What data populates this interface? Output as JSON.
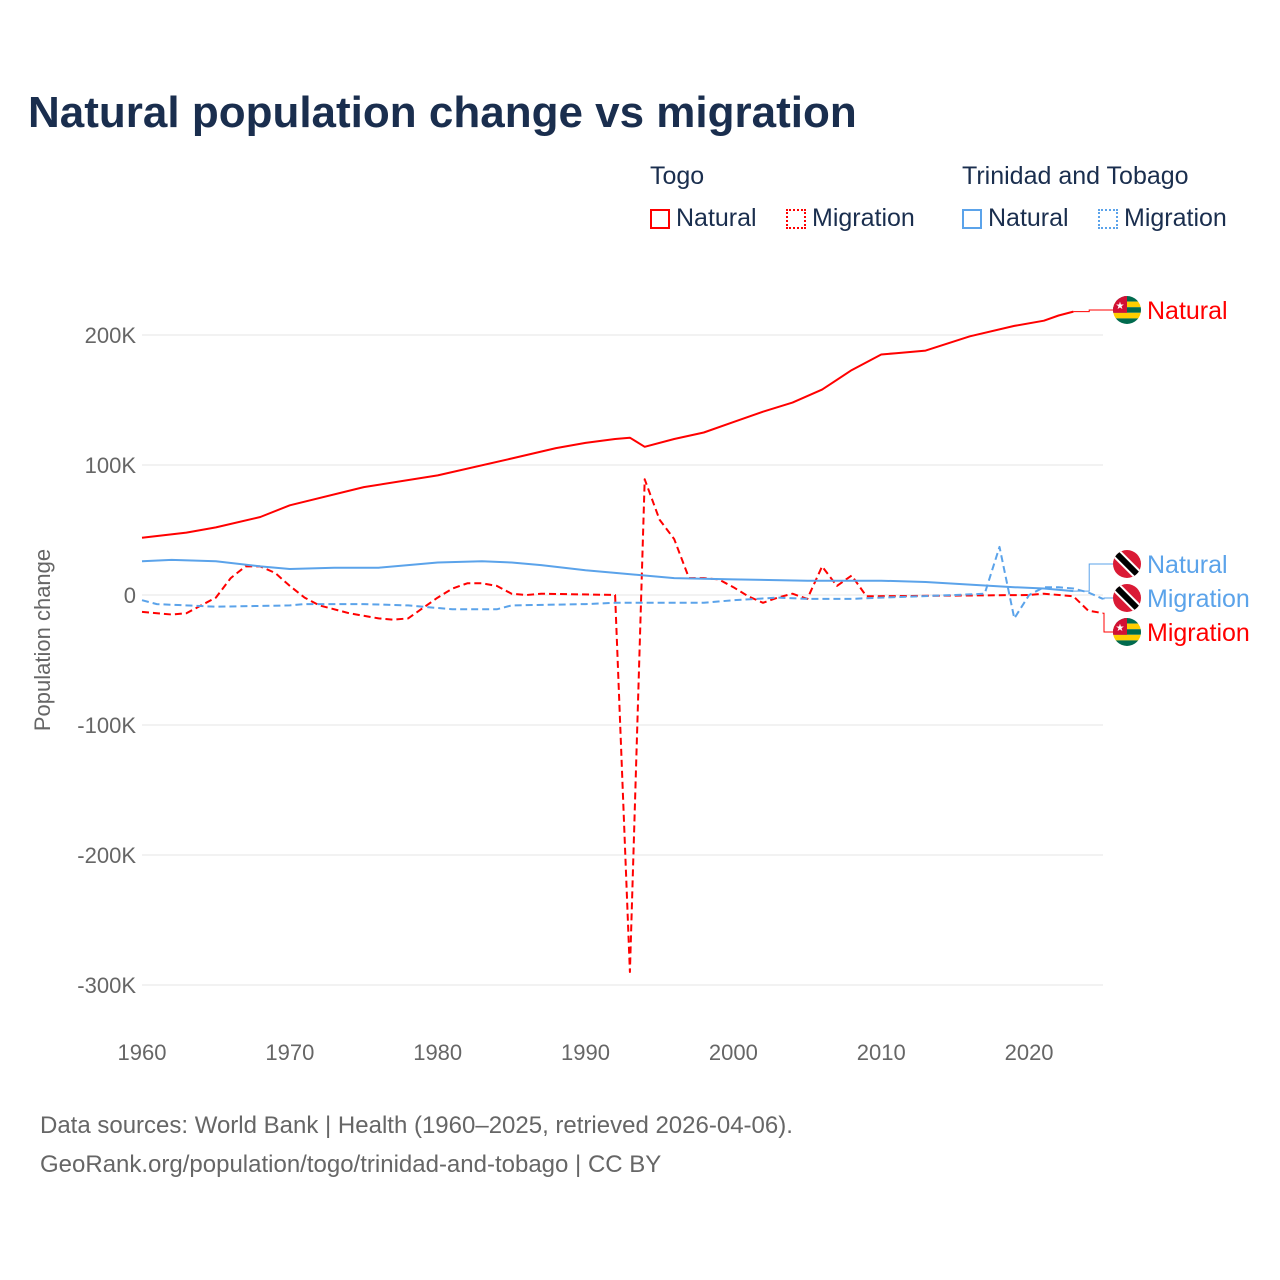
{
  "title": "Natural population change vs migration",
  "legend": {
    "groups": [
      {
        "name": "Togo",
        "items": [
          {
            "label": "Natural",
            "style": "solid"
          },
          {
            "label": "Migration",
            "style": "dotted"
          }
        ],
        "color": "#ff0000"
      },
      {
        "name": "Trinidad and Tobago",
        "items": [
          {
            "label": "Natural",
            "style": "solid"
          },
          {
            "label": "Migration",
            "style": "dotted"
          }
        ],
        "color": "#5ba3ea"
      }
    ]
  },
  "footer": {
    "line1": "Data sources: World Bank | Health (1960–2025, retrieved 2026-04-06).",
    "line2": "GeoRank.org/population/togo/trinidad-and-tobago | CC BY"
  },
  "chart_data": {
    "type": "line",
    "title": "Natural population change vs migration",
    "xlabel": "",
    "ylabel": "Population change",
    "xlim": [
      1960,
      2025
    ],
    "ylim": [
      -300000,
      230000
    ],
    "x_ticks": [
      1960,
      1970,
      1980,
      1990,
      2000,
      2010,
      2020
    ],
    "x_tick_labels": [
      "1960",
      "1970",
      "1980",
      "1990",
      "2000",
      "2010",
      "2020"
    ],
    "y_ticks": [
      200000,
      100000,
      0,
      -100000,
      -200000,
      -300000
    ],
    "y_tick_labels": [
      "200K",
      "100K",
      "0",
      "-100K",
      "-200K",
      "-300K"
    ],
    "grid": true,
    "series": [
      {
        "name": "Togo Natural",
        "end_label": "Natural",
        "color": "#ff0000",
        "dash": "solid",
        "flag": "togo",
        "points": [
          [
            1960,
            44000
          ],
          [
            1963,
            48000
          ],
          [
            1965,
            52000
          ],
          [
            1968,
            60000
          ],
          [
            1970,
            69000
          ],
          [
            1975,
            83000
          ],
          [
            1980,
            92000
          ],
          [
            1985,
            105000
          ],
          [
            1988,
            113000
          ],
          [
            1990,
            117000
          ],
          [
            1992,
            120000
          ],
          [
            1993,
            121000
          ],
          [
            1994,
            114000
          ],
          [
            1996,
            120000
          ],
          [
            1998,
            125000
          ],
          [
            2000,
            133000
          ],
          [
            2002,
            141000
          ],
          [
            2004,
            148000
          ],
          [
            2006,
            158000
          ],
          [
            2008,
            173000
          ],
          [
            2010,
            185000
          ],
          [
            2011,
            186000
          ],
          [
            2013,
            188000
          ],
          [
            2016,
            199000
          ],
          [
            2019,
            207000
          ],
          [
            2021,
            211000
          ],
          [
            2022,
            215000
          ],
          [
            2023,
            218000
          ]
        ]
      },
      {
        "name": "Togo Migration",
        "end_label": "Migration",
        "color": "#ff0000",
        "dash": "dashed",
        "flag": "togo",
        "points": [
          [
            1960,
            -13000
          ],
          [
            1962,
            -15000
          ],
          [
            1963,
            -14000
          ],
          [
            1965,
            -2000
          ],
          [
            1966,
            13000
          ],
          [
            1967,
            22000
          ],
          [
            1968,
            22000
          ],
          [
            1969,
            17000
          ],
          [
            1970,
            7000
          ],
          [
            1971,
            -2000
          ],
          [
            1972,
            -8000
          ],
          [
            1974,
            -14000
          ],
          [
            1976,
            -18000
          ],
          [
            1977,
            -19000
          ],
          [
            1978,
            -18000
          ],
          [
            1979,
            -10000
          ],
          [
            1980,
            -2000
          ],
          [
            1981,
            5000
          ],
          [
            1982,
            9000
          ],
          [
            1983,
            9000
          ],
          [
            1984,
            7000
          ],
          [
            1985,
            1000
          ],
          [
            1986,
            0
          ],
          [
            1987,
            1000
          ],
          [
            1992,
            0
          ],
          [
            1993,
            -290000
          ],
          [
            1994,
            89000
          ],
          [
            1995,
            58000
          ],
          [
            1996,
            43000
          ],
          [
            1997,
            13000
          ],
          [
            1998,
            13000
          ],
          [
            1999,
            12000
          ],
          [
            2000,
            6000
          ],
          [
            2001,
            -1000
          ],
          [
            2002,
            -6000
          ],
          [
            2003,
            -2000
          ],
          [
            2004,
            1000
          ],
          [
            2005,
            -3000
          ],
          [
            2006,
            22000
          ],
          [
            2007,
            7000
          ],
          [
            2008,
            15000
          ],
          [
            2009,
            -1000
          ],
          [
            2020,
            0
          ],
          [
            2021,
            1000
          ],
          [
            2023,
            -1000
          ],
          [
            2024,
            -12000
          ],
          [
            2025,
            -14000
          ]
        ]
      },
      {
        "name": "Trinidad and Tobago Natural",
        "end_label": "Natural",
        "color": "#5ba3ea",
        "dash": "solid",
        "flag": "tt",
        "points": [
          [
            1960,
            26000
          ],
          [
            1962,
            27000
          ],
          [
            1965,
            26000
          ],
          [
            1968,
            22000
          ],
          [
            1970,
            20000
          ],
          [
            1973,
            21000
          ],
          [
            1976,
            21000
          ],
          [
            1978,
            23000
          ],
          [
            1980,
            25000
          ],
          [
            1983,
            26000
          ],
          [
            1985,
            25000
          ],
          [
            1987,
            23000
          ],
          [
            1990,
            19000
          ],
          [
            1992,
            17000
          ],
          [
            1994,
            15000
          ],
          [
            1996,
            13000
          ],
          [
            2000,
            12000
          ],
          [
            2005,
            11000
          ],
          [
            2010,
            11000
          ],
          [
            2013,
            10000
          ],
          [
            2016,
            8000
          ],
          [
            2019,
            6000
          ],
          [
            2021,
            5000
          ],
          [
            2023,
            3000
          ]
        ]
      },
      {
        "name": "Trinidad and Tobago Migration",
        "end_label": "Migration",
        "color": "#5ba3ea",
        "dash": "dashed",
        "flag": "tt",
        "points": [
          [
            1960,
            -4000
          ],
          [
            1961,
            -7000
          ],
          [
            1965,
            -9000
          ],
          [
            1970,
            -8000
          ],
          [
            1971,
            -7000
          ],
          [
            1975,
            -7000
          ],
          [
            1978,
            -8000
          ],
          [
            1980,
            -10000
          ],
          [
            1981,
            -11000
          ],
          [
            1984,
            -11000
          ],
          [
            1985,
            -8000
          ],
          [
            1990,
            -7000
          ],
          [
            1992,
            -6000
          ],
          [
            1998,
            -6000
          ],
          [
            2000,
            -4000
          ],
          [
            2003,
            -2000
          ],
          [
            2005,
            -3000
          ],
          [
            2008,
            -3000
          ],
          [
            2010,
            -2000
          ],
          [
            2015,
            0
          ],
          [
            2017,
            1000
          ],
          [
            2018,
            37000
          ],
          [
            2019,
            -18000
          ],
          [
            2020,
            0
          ],
          [
            2021,
            6000
          ],
          [
            2022,
            6000
          ],
          [
            2023,
            5000
          ],
          [
            2024,
            2000
          ],
          [
            2025,
            -3000
          ]
        ]
      }
    ]
  }
}
